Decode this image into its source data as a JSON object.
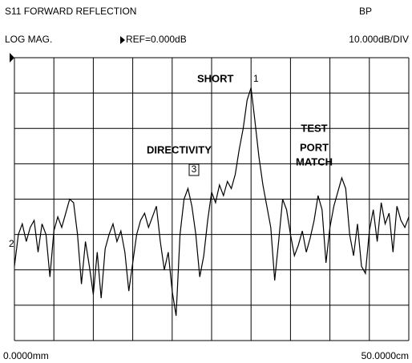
{
  "chart_data": {
    "type": "line",
    "title": "S11 FORWARD REFLECTION",
    "mode": "BP",
    "format": "LOG MAG.",
    "reference": "REF=0.000dB",
    "scale": "10.000dB/DIV",
    "annotations": [
      "SHORT",
      "1",
      "DIRECTIVITY",
      "3",
      "TEST",
      "PORT",
      "MATCH",
      "2"
    ],
    "xlim": [
      0,
      50
    ],
    "ylim": [
      -80,
      0
    ],
    "xticks": [
      {
        "value": 0,
        "label": "0.0000mm"
      },
      {
        "value": 50,
        "label": "50.0000cm"
      }
    ],
    "xgrid": [
      0,
      5,
      10,
      15,
      20,
      25,
      30,
      35,
      40,
      45,
      50
    ],
    "ygrid": [
      -80,
      -70,
      -60,
      -50,
      -40,
      -30,
      -20,
      -10,
      0
    ],
    "color": "#000000",
    "x": [
      0,
      0.5,
      1,
      1.5,
      2,
      2.5,
      3,
      3.5,
      4,
      4.5,
      5,
      5.5,
      6,
      6.5,
      7,
      7.5,
      8,
      8.5,
      9,
      9.5,
      10,
      10.5,
      11,
      11.5,
      12,
      12.5,
      13,
      13.5,
      14,
      14.5,
      15,
      15.5,
      16,
      16.5,
      17,
      17.5,
      18,
      18.5,
      19,
      19.5,
      20,
      20.5,
      21,
      21.5,
      22,
      22.5,
      23,
      23.5,
      24,
      24.5,
      25,
      25.5,
      26,
      26.5,
      27,
      27.5,
      28,
      28.5,
      29,
      29.5,
      30,
      30.5,
      31,
      31.5,
      32,
      32.5,
      33,
      33.5,
      34,
      34.5,
      35,
      35.5,
      36,
      36.5,
      37,
      37.5,
      38,
      38.5,
      39,
      39.5,
      40,
      40.5,
      41,
      41.5,
      42,
      42.5,
      43,
      43.5,
      44,
      44.5,
      45,
      45.5,
      46,
      46.5,
      47,
      47.5,
      48,
      48.5,
      49,
      49.5,
      50
    ],
    "values": [
      -59,
      -50,
      -47,
      -52,
      -48,
      -46,
      -55,
      -47,
      -50,
      -62,
      -49,
      -45,
      -48,
      -44,
      -40,
      -41,
      -50,
      -64,
      -52,
      -59,
      -67,
      -55,
      -68,
      -54,
      -50,
      -47,
      -52,
      -49,
      -55,
      -66,
      -58,
      -50,
      -46,
      -44,
      -48,
      -45,
      -42,
      -52,
      -60,
      -55,
      -66,
      -73,
      -50,
      -40,
      -37,
      -42,
      -50,
      -62,
      -56,
      -46,
      -38,
      -41,
      -36,
      -39,
      -35,
      -37,
      -33,
      -26,
      -20,
      -12,
      -8.5,
      -18,
      -28,
      -36,
      -42,
      -48,
      -63,
      -52,
      -40,
      -43,
      -50,
      -56,
      -53,
      -49,
      -55,
      -51,
      -46,
      -39,
      -43,
      -58,
      -48,
      -42,
      -38,
      -34,
      -37,
      -50,
      -56,
      -47,
      -59,
      -61,
      -49,
      -43,
      -52,
      -41,
      -47,
      -44,
      -55,
      -42,
      -46,
      -48,
      -45
    ]
  }
}
